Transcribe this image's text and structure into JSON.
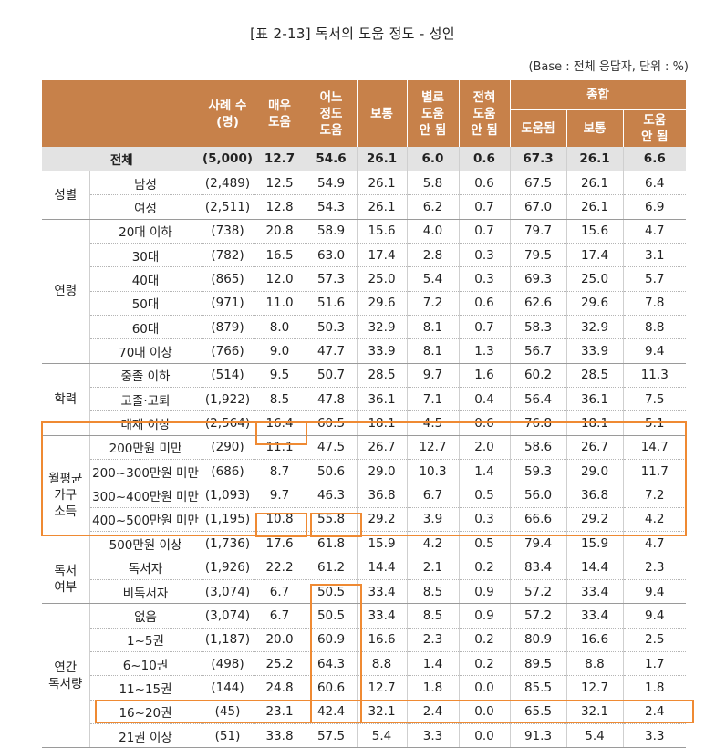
{
  "title": "[표 2-13] 독서의 도움 정도 - 성인",
  "base_note": "(Base : 전체 응답자, 단위 : %)",
  "headers": {
    "count": "사례 수\n(명)",
    "very": "매우\n도움",
    "somewhat": "어느\n정도\n도움",
    "neutral": "보통",
    "not_much": "별로\n도움\n안 됨",
    "not_at_all": "전혀\n도움\n안 됨",
    "summary": "종합",
    "sum_help": "도움됨",
    "sum_neutral": "보통",
    "sum_nohelp": "도움\n안 됨"
  },
  "total": {
    "label": "전체",
    "cells": [
      "(5,000)",
      "12.7",
      "54.6",
      "26.1",
      "6.0",
      "0.6",
      "67.3",
      "26.1",
      "6.6"
    ]
  },
  "groups": [
    {
      "name": "성별",
      "rows": [
        {
          "label": "남성",
          "cells": [
            "(2,489)",
            "12.5",
            "54.9",
            "26.1",
            "5.8",
            "0.6",
            "67.5",
            "26.1",
            "6.4"
          ]
        },
        {
          "label": "여성",
          "cells": [
            "(2,511)",
            "12.8",
            "54.3",
            "26.1",
            "6.2",
            "0.7",
            "67.0",
            "26.1",
            "6.9"
          ]
        }
      ]
    },
    {
      "name": "연령",
      "rows": [
        {
          "label": "20대 이하",
          "cells": [
            "(738)",
            "20.8",
            "58.9",
            "15.6",
            "4.0",
            "0.7",
            "79.7",
            "15.6",
            "4.7"
          ]
        },
        {
          "label": "30대",
          "cells": [
            "(782)",
            "16.5",
            "63.0",
            "17.4",
            "2.8",
            "0.3",
            "79.5",
            "17.4",
            "3.1"
          ]
        },
        {
          "label": "40대",
          "cells": [
            "(865)",
            "12.0",
            "57.3",
            "25.0",
            "5.4",
            "0.3",
            "69.3",
            "25.0",
            "5.7"
          ]
        },
        {
          "label": "50대",
          "cells": [
            "(971)",
            "11.0",
            "51.6",
            "29.6",
            "7.2",
            "0.6",
            "62.6",
            "29.6",
            "7.8"
          ]
        },
        {
          "label": "60대",
          "cells": [
            "(879)",
            "8.0",
            "50.3",
            "32.9",
            "8.1",
            "0.7",
            "58.3",
            "32.9",
            "8.8"
          ]
        },
        {
          "label": "70대 이상",
          "cells": [
            "(766)",
            "9.0",
            "47.7",
            "33.9",
            "8.1",
            "1.3",
            "56.7",
            "33.9",
            "9.4"
          ]
        }
      ]
    },
    {
      "name": "학력",
      "rows": [
        {
          "label": "중졸 이하",
          "cells": [
            "(514)",
            "9.5",
            "50.7",
            "28.5",
            "9.7",
            "1.6",
            "60.2",
            "28.5",
            "11.3"
          ]
        },
        {
          "label": "고졸·고퇴",
          "cells": [
            "(1,922)",
            "8.5",
            "47.8",
            "36.1",
            "7.1",
            "0.4",
            "56.4",
            "36.1",
            "7.5"
          ]
        },
        {
          "label": "대재 이상",
          "cells": [
            "(2,564)",
            "16.4",
            "60.5",
            "18.1",
            "4.5",
            "0.6",
            "76.8",
            "18.1",
            "5.1"
          ]
        }
      ]
    },
    {
      "name": "월평균\n가구\n소득",
      "rows": [
        {
          "label": "200만원 미만",
          "cells": [
            "(290)",
            "11.1",
            "47.5",
            "26.7",
            "12.7",
            "2.0",
            "58.6",
            "26.7",
            "14.7"
          ]
        },
        {
          "label": "200~300만원 미만",
          "cells": [
            "(686)",
            "8.7",
            "50.6",
            "29.0",
            "10.3",
            "1.4",
            "59.3",
            "29.0",
            "11.7"
          ]
        },
        {
          "label": "300~400만원 미만",
          "cells": [
            "(1,093)",
            "9.7",
            "46.3",
            "36.8",
            "6.7",
            "0.5",
            "56.0",
            "36.8",
            "7.2"
          ]
        },
        {
          "label": "400~500만원 미만",
          "cells": [
            "(1,195)",
            "10.8",
            "55.8",
            "29.2",
            "3.9",
            "0.3",
            "66.6",
            "29.2",
            "4.2"
          ]
        },
        {
          "label": "500만원 이상",
          "cells": [
            "(1,736)",
            "17.6",
            "61.8",
            "15.9",
            "4.2",
            "0.5",
            "79.4",
            "15.9",
            "4.7"
          ]
        }
      ]
    },
    {
      "name": "독서\n여부",
      "rows": [
        {
          "label": "독서자",
          "cells": [
            "(1,926)",
            "22.2",
            "61.2",
            "14.4",
            "2.1",
            "0.2",
            "83.4",
            "14.4",
            "2.3"
          ]
        },
        {
          "label": "비독서자",
          "cells": [
            "(3,074)",
            "6.7",
            "50.5",
            "33.4",
            "8.5",
            "0.9",
            "57.2",
            "33.4",
            "9.4"
          ]
        }
      ]
    },
    {
      "name": "연간\n독서량",
      "rows": [
        {
          "label": "없음",
          "cells": [
            "(3,074)",
            "6.7",
            "50.5",
            "33.4",
            "8.5",
            "0.9",
            "57.2",
            "33.4",
            "9.4"
          ]
        },
        {
          "label": "1~5권",
          "cells": [
            "(1,187)",
            "20.0",
            "60.9",
            "16.6",
            "2.3",
            "0.2",
            "80.9",
            "16.6",
            "2.5"
          ]
        },
        {
          "label": "6~10권",
          "cells": [
            "(498)",
            "25.2",
            "64.3",
            "8.8",
            "1.4",
            "0.2",
            "89.5",
            "8.8",
            "1.7"
          ]
        },
        {
          "label": "11~15권",
          "cells": [
            "(144)",
            "24.8",
            "60.6",
            "12.7",
            "1.8",
            "0.0",
            "85.5",
            "12.7",
            "1.8"
          ]
        },
        {
          "label": "16~20권",
          "cells": [
            "(45)",
            "23.1",
            "42.4",
            "32.1",
            "2.4",
            "0.0",
            "65.5",
            "32.1",
            "2.4"
          ]
        },
        {
          "label": "21권 이상",
          "cells": [
            "(51)",
            "33.8",
            "57.5",
            "5.4",
            "3.3",
            "0.0",
            "91.3",
            "5.4",
            "3.3"
          ]
        }
      ]
    }
  ],
  "highlight_color": "#ef8a33",
  "header_color": "#c7814a"
}
